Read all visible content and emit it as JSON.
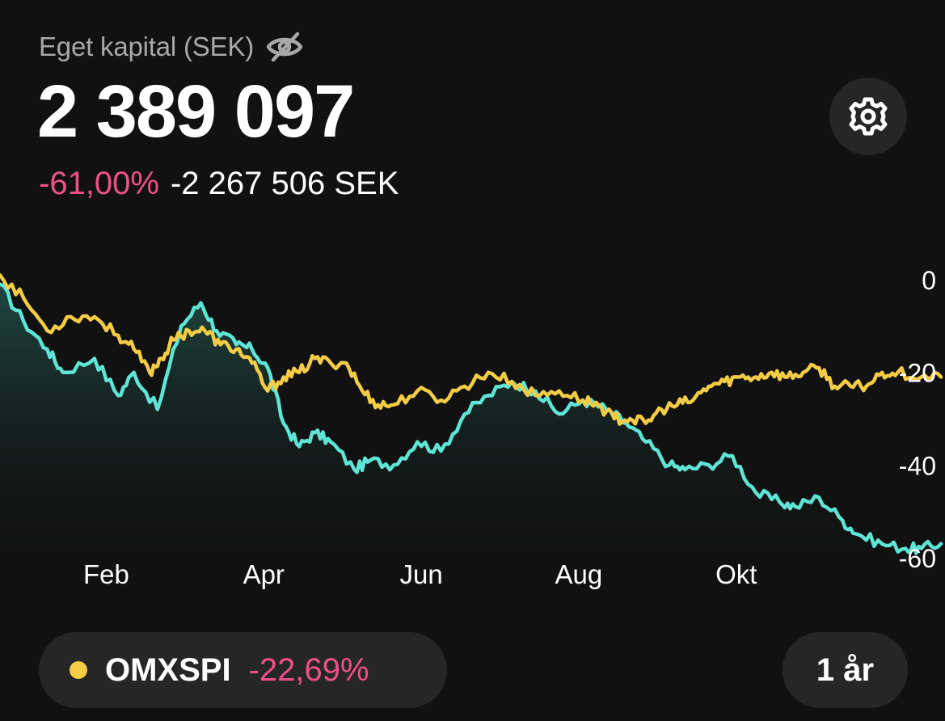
{
  "header": {
    "label": "Eget kapital (SEK)",
    "hide_icon": "eye-slash-icon",
    "balance": "2 389 097",
    "change_pct": "-61,00%",
    "change_abs": "-2 267 506 SEK",
    "settings_icon": "gear-icon"
  },
  "footer": {
    "index_name": "OMXSPI",
    "index_change": "-22,69%",
    "period": "1 år"
  },
  "colors": {
    "background": "#111111",
    "portfolio_line": "#5ee5d6",
    "index_line": "#f5cc45",
    "negative": "#f0508a",
    "pill": "#262626"
  },
  "chart_data": {
    "type": "line",
    "y_ticks": [
      "0",
      "-20",
      "-40",
      "-60"
    ],
    "y_tick_values": [
      0,
      -20,
      -40,
      -60
    ],
    "x_ticks": [
      "Feb",
      "Apr",
      "Jun",
      "Aug",
      "Okt"
    ],
    "x_tick_values": [
      1.0,
      3.0,
      5.0,
      7.0,
      9.0
    ],
    "xlim": [
      0,
      12
    ],
    "ylim": [
      -60,
      0
    ],
    "series": [
      {
        "key": "portfolio",
        "x": [
          0.0,
          0.3,
          0.6,
          0.8,
          1.2,
          1.5,
          1.7,
          2.0,
          2.3,
          2.55,
          2.75,
          3.0,
          3.2,
          3.4,
          3.6,
          3.8,
          4.0,
          4.2,
          4.5,
          4.7,
          5.0,
          5.3,
          5.6,
          5.9,
          6.2,
          6.5,
          6.8,
          7.1,
          7.4,
          7.7,
          7.95,
          8.2,
          8.5,
          8.7,
          9.0,
          9.3,
          9.6,
          9.9,
          10.1,
          10.4,
          10.7,
          10.9,
          11.2,
          11.5,
          11.7,
          11.95
        ],
        "values": [
          -1,
          -9,
          -15,
          -20,
          -17,
          -25,
          -20,
          -28,
          -10,
          -5,
          -11,
          -14,
          -15,
          -19,
          -31,
          -36,
          -33,
          -35,
          -41,
          -39,
          -40,
          -35,
          -37,
          -29,
          -25,
          -22,
          -24,
          -29,
          -26,
          -28,
          -31,
          -35,
          -40,
          -41,
          -40,
          -38,
          -46,
          -48,
          -49,
          -47,
          -52,
          -55,
          -57,
          -58,
          -58,
          -57
        ]
      },
      {
        "key": "omxspi",
        "x": [
          0.0,
          0.3,
          0.6,
          0.9,
          1.2,
          1.5,
          1.7,
          1.9,
          2.05,
          2.2,
          2.4,
          2.6,
          2.8,
          3.0,
          3.2,
          3.4,
          3.6,
          3.8,
          4.0,
          4.2,
          4.4,
          4.6,
          4.8,
          5.0,
          5.3,
          5.6,
          5.9,
          6.2,
          6.5,
          6.8,
          7.1,
          7.4,
          7.6,
          7.8,
          8.0,
          8.2,
          8.4,
          8.6,
          8.8,
          9.0,
          9.2,
          9.4,
          9.6,
          9.8,
          10.0,
          10.2,
          10.4,
          10.6,
          10.8,
          11.0,
          11.2,
          11.4,
          11.7,
          11.95
        ],
        "values": [
          1,
          -4,
          -11,
          -8,
          -8,
          -12,
          -15,
          -20,
          -17,
          -13,
          -11,
          -11,
          -14,
          -15,
          -18,
          -24,
          -21,
          -20,
          -17,
          -18,
          -18,
          -24,
          -27,
          -27,
          -24,
          -26,
          -23,
          -20,
          -22,
          -25,
          -24,
          -26,
          -27,
          -30,
          -30,
          -31,
          -28,
          -27,
          -26,
          -23,
          -22,
          -21,
          -21,
          -20,
          -21,
          -20,
          -19,
          -23,
          -23,
          -23,
          -20,
          -20,
          -21,
          -21
        ]
      }
    ]
  }
}
